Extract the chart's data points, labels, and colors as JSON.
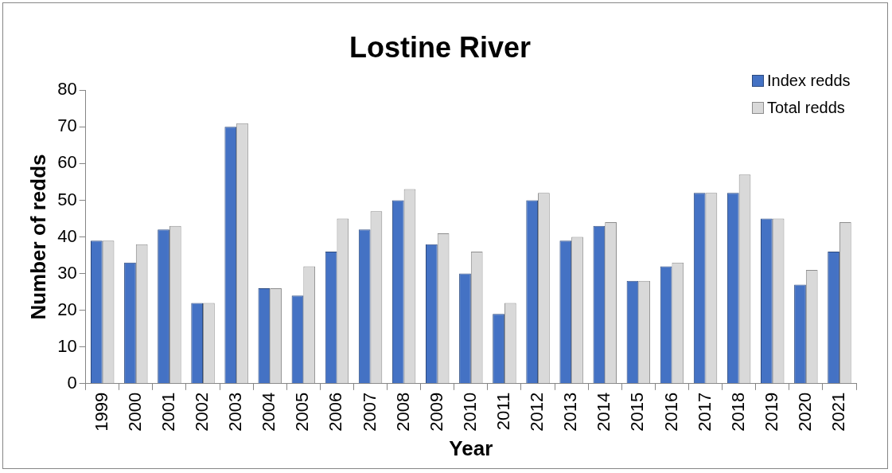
{
  "chart_data": {
    "type": "bar",
    "title": "Lostine River",
    "xlabel": "Year",
    "ylabel": "Number of redds",
    "categories": [
      "1999",
      "2000",
      "2001",
      "2002",
      "2003",
      "2004",
      "2005",
      "2006",
      "2007",
      "2008",
      "2009",
      "2010",
      "2011",
      "2012",
      "2013",
      "2014",
      "2015",
      "2016",
      "2017",
      "2018",
      "2019",
      "2020",
      "2021"
    ],
    "series": [
      {
        "name": "Index redds",
        "color": "#4472c4",
        "values": [
          39,
          33,
          42,
          22,
          70,
          26,
          24,
          36,
          42,
          50,
          38,
          30,
          19,
          50,
          39,
          43,
          28,
          32,
          52,
          52,
          45,
          27,
          36
        ]
      },
      {
        "name": "Total redds",
        "color": "#d9d9d9",
        "values": [
          39,
          38,
          43,
          22,
          71,
          26,
          32,
          45,
          47,
          53,
          41,
          36,
          22,
          52,
          40,
          44,
          28,
          33,
          52,
          57,
          45,
          31,
          44
        ]
      }
    ],
    "ylim": [
      0,
      80
    ],
    "yticks": [
      0,
      10,
      20,
      30,
      40,
      50,
      60,
      70,
      80
    ],
    "grid": false,
    "legend": "top right"
  }
}
